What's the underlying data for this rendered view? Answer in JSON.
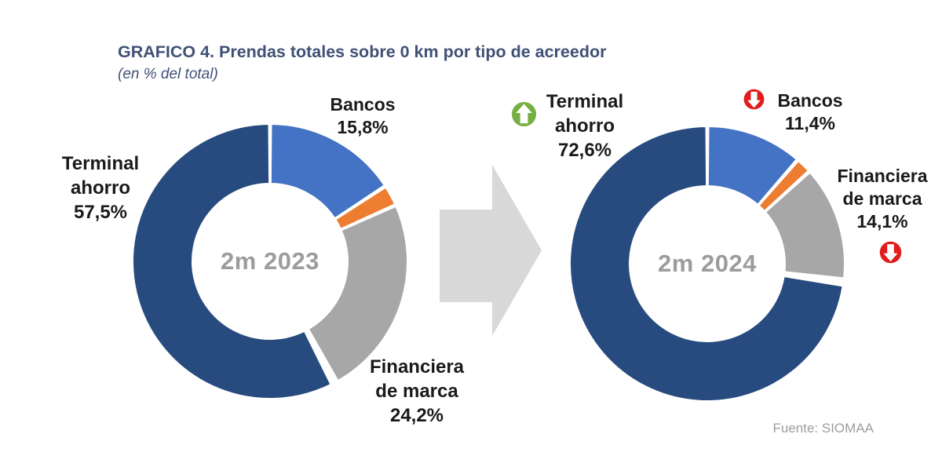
{
  "header": {
    "title": "GRAFICO 4. Prendas totales sobre 0 km por tipo de acreedor",
    "subtitle": "(en % del total)"
  },
  "source": "Fuente: SIOMAA",
  "colors": {
    "title_text": "#405175",
    "label_text": "#1a1a1a",
    "center_text": "#9c9c9c",
    "source_text": "#9e9e9e",
    "arrow_gray": "#d8d8d8",
    "trend_up_green": "#76b043",
    "trend_down_red": "#e21b1b",
    "terminal_navy": "#274b7e",
    "bancos_blue": "#4472c4",
    "otros_orange": "#ed7d31",
    "financiera_gray": "#a7a7a7"
  },
  "chart_data": [
    {
      "type": "pie",
      "subtype": "donut",
      "center_label": "2m 2023",
      "start_angle_deg": 0,
      "direction": "clockwise",
      "slices": [
        {
          "label": "Bancos",
          "value": 15.8,
          "display": "15,8%",
          "color": "#4472c4"
        },
        {
          "label": "",
          "value": 2.5,
          "display": "",
          "color": "#ed7d31"
        },
        {
          "label": "Financiera de marca",
          "value": 24.2,
          "display": "24,2%",
          "color": "#a7a7a7"
        },
        {
          "label": "Terminal ahorro",
          "value": 57.5,
          "display": "57,5%",
          "color": "#274b7e"
        }
      ]
    },
    {
      "type": "pie",
      "subtype": "donut",
      "center_label": "2m 2024",
      "start_angle_deg": 0,
      "direction": "clockwise",
      "slices": [
        {
          "label": "Bancos",
          "value": 11.4,
          "display": "11,4%",
          "color": "#4472c4",
          "trend": "down"
        },
        {
          "label": "",
          "value": 1.9,
          "display": "",
          "color": "#ed7d31"
        },
        {
          "label": "Financiera de marca",
          "value": 14.1,
          "display": "14,1%",
          "color": "#a7a7a7",
          "trend": "down"
        },
        {
          "label": "Terminal ahorro",
          "value": 72.6,
          "display": "72,6%",
          "color": "#274b7e",
          "trend": "up"
        }
      ]
    }
  ]
}
